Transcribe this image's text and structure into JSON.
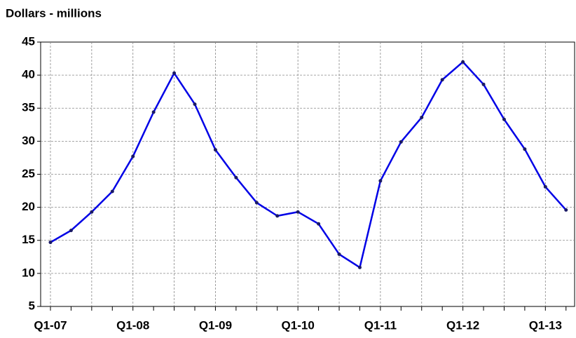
{
  "chart_data": {
    "type": "line",
    "title": "Dollars - millions",
    "categories": [
      "Q1-07",
      null,
      null,
      null,
      "Q1-08",
      null,
      null,
      null,
      "Q1-09",
      null,
      null,
      null,
      "Q1-10",
      null,
      null,
      null,
      "Q1-11",
      null,
      null,
      null,
      "Q1-12",
      null,
      null,
      null,
      "Q1-13",
      null
    ],
    "series": [
      {
        "name": "Dollars",
        "color": "#0000e6",
        "values": [
          14.7,
          16.5,
          19.3,
          22.4,
          27.7,
          34.4,
          40.3,
          35.6,
          28.7,
          24.5,
          20.7,
          18.7,
          19.3,
          17.5,
          12.9,
          10.9,
          24.0,
          29.9,
          33.6,
          39.3,
          42.0,
          38.6,
          33.3,
          28.8,
          23.1,
          19.6
        ]
      }
    ],
    "ylim": [
      5,
      45
    ],
    "yticks": [
      5,
      10,
      15,
      20,
      25,
      30,
      35,
      40,
      45
    ],
    "grid": true
  }
}
